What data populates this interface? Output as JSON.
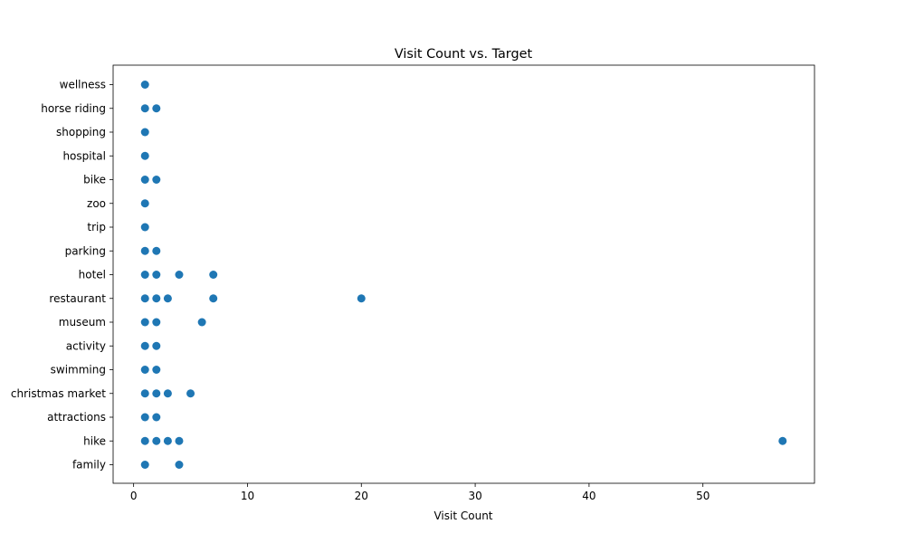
{
  "chart_data": {
    "type": "scatter",
    "title": "Visit Count vs. Target",
    "xlabel": "Visit Count",
    "ylabel": "",
    "xlim": [
      -1.8,
      59.8
    ],
    "x_ticks": [
      0,
      10,
      20,
      30,
      40,
      50
    ],
    "categories": [
      "family",
      "hike",
      "attractions",
      "christmas market",
      "swimming",
      "activity",
      "museum",
      "restaurant",
      "hotel",
      "parking",
      "trip",
      "zoo",
      "bike",
      "hospital",
      "shopping",
      "horse riding",
      "wellness"
    ],
    "grid": false,
    "legend": "none",
    "marker_color": "#1f77b4",
    "points": [
      {
        "category": "family",
        "values": [
          1,
          4
        ]
      },
      {
        "category": "hike",
        "values": [
          1,
          2,
          3,
          4,
          57
        ]
      },
      {
        "category": "attractions",
        "values": [
          1,
          2
        ]
      },
      {
        "category": "christmas market",
        "values": [
          1,
          2,
          3,
          5
        ]
      },
      {
        "category": "swimming",
        "values": [
          1,
          2
        ]
      },
      {
        "category": "activity",
        "values": [
          1,
          2
        ]
      },
      {
        "category": "museum",
        "values": [
          1,
          2,
          6
        ]
      },
      {
        "category": "restaurant",
        "values": [
          1,
          2,
          3,
          7,
          20
        ]
      },
      {
        "category": "hotel",
        "values": [
          1,
          2,
          4,
          7
        ]
      },
      {
        "category": "parking",
        "values": [
          1,
          2
        ]
      },
      {
        "category": "trip",
        "values": [
          1
        ]
      },
      {
        "category": "zoo",
        "values": [
          1
        ]
      },
      {
        "category": "bike",
        "values": [
          1,
          2
        ]
      },
      {
        "category": "hospital",
        "values": [
          1
        ]
      },
      {
        "category": "shopping",
        "values": [
          1
        ]
      },
      {
        "category": "horse riding",
        "values": [
          1,
          2
        ]
      },
      {
        "category": "wellness",
        "values": [
          1
        ]
      }
    ]
  }
}
